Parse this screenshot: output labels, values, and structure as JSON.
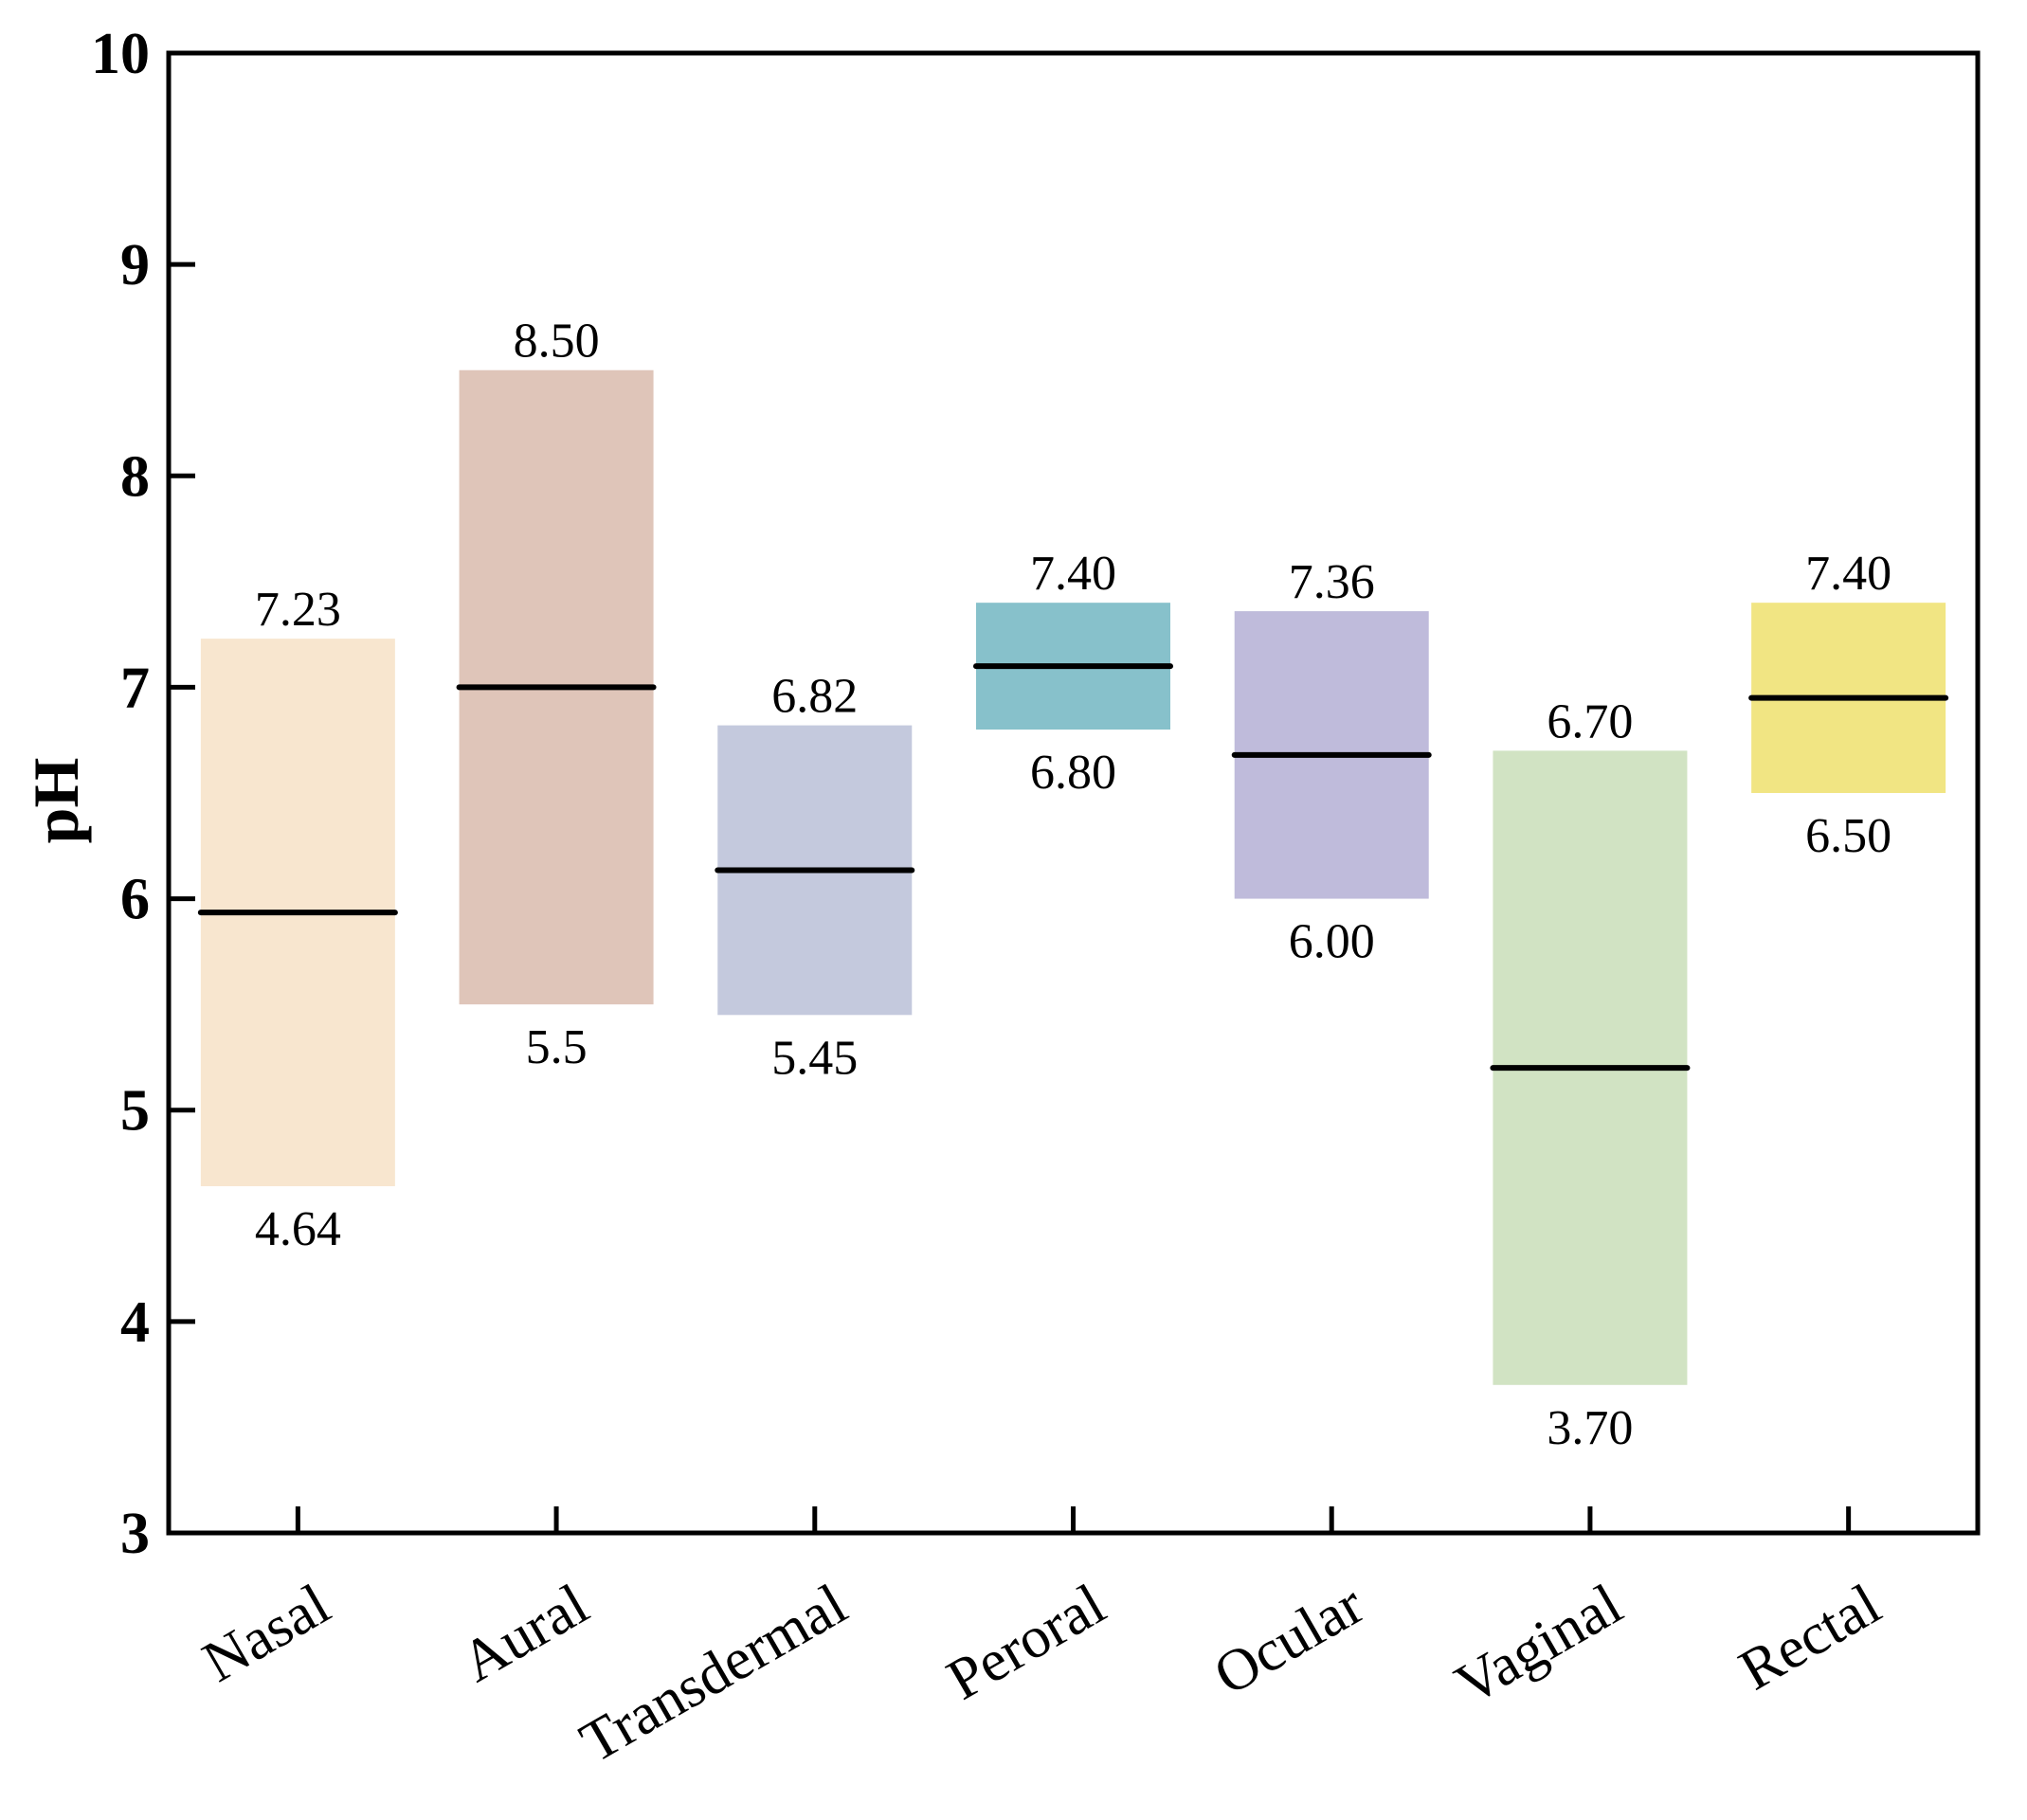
{
  "chart_data": {
    "type": "bar",
    "subtype": "floating-range",
    "title": "",
    "xlabel": "",
    "ylabel": "pH",
    "ylim": [
      3,
      10
    ],
    "yticks": [
      "3",
      "4",
      "5",
      "6",
      "7",
      "8",
      "9",
      "10"
    ],
    "categories": [
      "Nasal",
      "Aural",
      "Transdermal",
      "Peroral",
      "Ocular",
      "Vaginal",
      "Rectal"
    ],
    "series": [
      {
        "name": "min",
        "values": [
          4.64,
          5.5,
          5.45,
          6.8,
          6.0,
          3.7,
          6.5
        ]
      },
      {
        "name": "max",
        "values": [
          7.23,
          8.5,
          6.82,
          7.4,
          7.36,
          6.7,
          7.4
        ]
      },
      {
        "name": "mid",
        "values": [
          5.935,
          7.0,
          6.135,
          7.1,
          6.68,
          5.2,
          6.95
        ]
      }
    ],
    "min_labels": [
      "4.64",
      "5.5",
      "5.45",
      "6.80",
      "6.00",
      "3.70",
      "6.50"
    ],
    "max_labels": [
      "7.23",
      "8.50",
      "6.82",
      "7.40",
      "7.36",
      "6.70",
      "7.40"
    ],
    "colors": [
      "#f8e6cf",
      "#dfc5b9",
      "#c4c9dd",
      "#87c1cb",
      "#bfbbdb",
      "#d1e3c3",
      "#f1e583"
    ],
    "grid": false,
    "legend": "none"
  }
}
